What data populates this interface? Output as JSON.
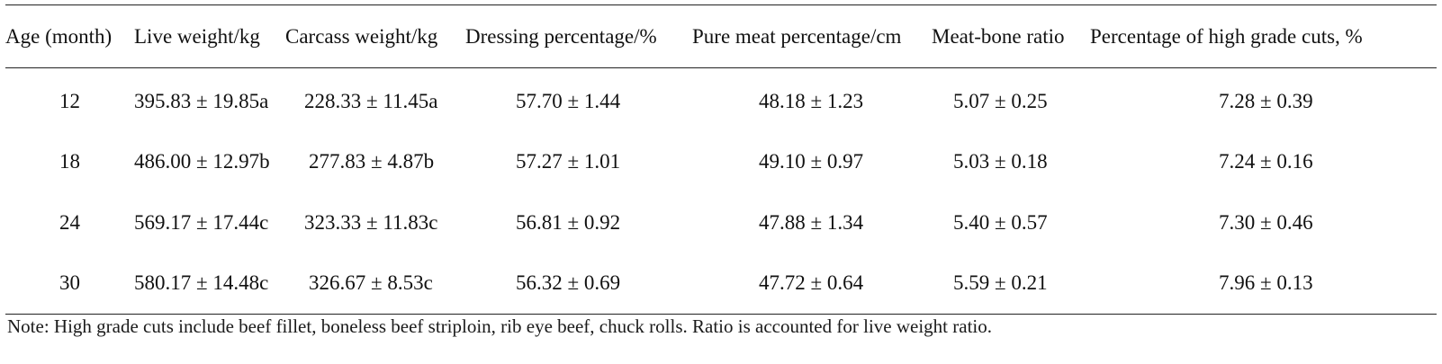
{
  "table": {
    "headers": [
      "Age (month)",
      "Live weight/kg",
      "Carcass weight/kg",
      "Dressing percentage/%",
      "Pure meat percentage/cm",
      "Meat-bone ratio",
      "Percentage of high grade cuts, %"
    ],
    "rows": [
      [
        "12",
        "395.83 ± 19.85a",
        "228.33 ± 11.45a",
        "57.70 ± 1.44",
        "48.18 ± 1.23",
        "5.07 ± 0.25",
        "7.28 ± 0.39"
      ],
      [
        "18",
        "486.00 ± 12.97b",
        "277.83 ± 4.87b",
        "57.27 ± 1.01",
        "49.10 ± 0.97",
        "5.03 ± 0.18",
        "7.24 ± 0.16"
      ],
      [
        "24",
        "569.17 ± 17.44c",
        "323.33 ± 11.83c",
        "56.81 ± 0.92",
        "47.88 ± 1.34",
        "5.40 ± 0.57",
        "7.30 ± 0.46"
      ],
      [
        "30",
        "580.17 ± 14.48c",
        "326.67 ± 8.53c",
        "56.32 ± 0.69",
        "47.72 ± 0.64",
        "5.59 ± 0.21",
        "7.96 ± 0.13"
      ]
    ]
  },
  "note": "Note: High grade cuts include beef fillet, boneless beef striploin, rib eye beef, chuck rolls. Ratio is accounted for live weight ratio."
}
